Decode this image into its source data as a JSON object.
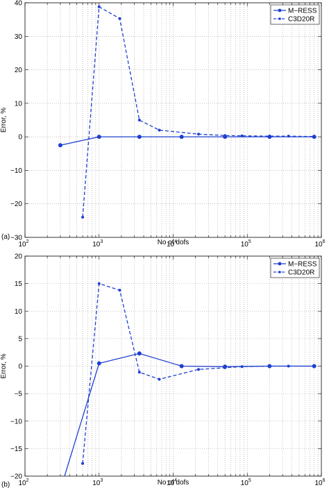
{
  "chart_data": [
    {
      "type": "line",
      "panel_label": "(a)",
      "xlabel": "No of dofs",
      "ylabel": "Error, %",
      "xscale": "log",
      "xlim": [
        100,
        1000000
      ],
      "ylim": [
        -30,
        40
      ],
      "x_tick_labels": [
        {
          "base": "10",
          "exp": "2",
          "value": 100
        },
        {
          "base": "10",
          "exp": "3",
          "value": 1000
        },
        {
          "base": "10",
          "exp": "4",
          "value": 10000
        },
        {
          "base": "10",
          "exp": "5",
          "value": 100000
        },
        {
          "base": "10",
          "exp": "6",
          "value": 1000000
        }
      ],
      "y_ticks": [
        -30,
        -20,
        -10,
        0,
        10,
        20,
        30,
        40
      ],
      "y_tick_labels": [
        "−30",
        "−20",
        "−10",
        "0",
        "10",
        "20",
        "30",
        "40"
      ],
      "grid": true,
      "legend_position": "top-right",
      "series": [
        {
          "name": "M−RESS",
          "style": "solid",
          "marker": "circle",
          "x": [
            300,
            1000,
            3500,
            13000,
            50000,
            200000,
            800000
          ],
          "y": [
            -2.5,
            0.0,
            0.0,
            0.0,
            0.0,
            0.0,
            0.0
          ]
        },
        {
          "name": "C3D20R",
          "style": "dashed",
          "marker": "dot",
          "x": [
            600,
            1000,
            1900,
            3500,
            6500,
            22000,
            50000,
            85000,
            200000,
            360000,
            800000
          ],
          "y": [
            -24,
            38.8,
            35.3,
            5.0,
            2.0,
            0.8,
            0.4,
            0.3,
            0.2,
            0.2,
            0.1
          ]
        }
      ]
    },
    {
      "type": "line",
      "panel_label": "(b)",
      "xlabel": "No of dofs",
      "ylabel": "Error, %",
      "xscale": "log",
      "xlim": [
        100,
        1000000
      ],
      "ylim": [
        -20,
        20
      ],
      "x_tick_labels": [
        {
          "base": "10",
          "exp": "2",
          "value": 100
        },
        {
          "base": "10",
          "exp": "3",
          "value": 1000
        },
        {
          "base": "10",
          "exp": "4",
          "value": 10000
        },
        {
          "base": "10",
          "exp": "5",
          "value": 100000
        },
        {
          "base": "10",
          "exp": "6",
          "value": 1000000
        }
      ],
      "y_ticks": [
        -20,
        -15,
        -10,
        -5,
        0,
        5,
        10,
        15,
        20
      ],
      "y_tick_labels": [
        "−20",
        "−15",
        "−10",
        "−5",
        "0",
        "5",
        "10",
        "15",
        "20"
      ],
      "grid": true,
      "legend_position": "top-right",
      "series": [
        {
          "name": "M−RESS",
          "style": "solid",
          "marker": "circle",
          "x": [
            300,
            1000,
            3500,
            13000,
            50000,
            200000,
            800000
          ],
          "y": [
            -22.5,
            0.5,
            2.3,
            0.0,
            -0.1,
            0.0,
            0.0
          ]
        },
        {
          "name": "C3D20R",
          "style": "dashed",
          "marker": "dot",
          "x": [
            600,
            1000,
            1900,
            3500,
            6500,
            22000,
            50000,
            85000,
            200000,
            360000,
            800000
          ],
          "y": [
            -17.7,
            15.0,
            13.8,
            -1.1,
            -2.4,
            -0.6,
            -0.3,
            -0.1,
            0.0,
            0.0,
            0.0
          ]
        }
      ]
    }
  ],
  "colors": {
    "series": "#1f3fcf",
    "grid": "#9a9a9a",
    "axis": "#000000"
  }
}
